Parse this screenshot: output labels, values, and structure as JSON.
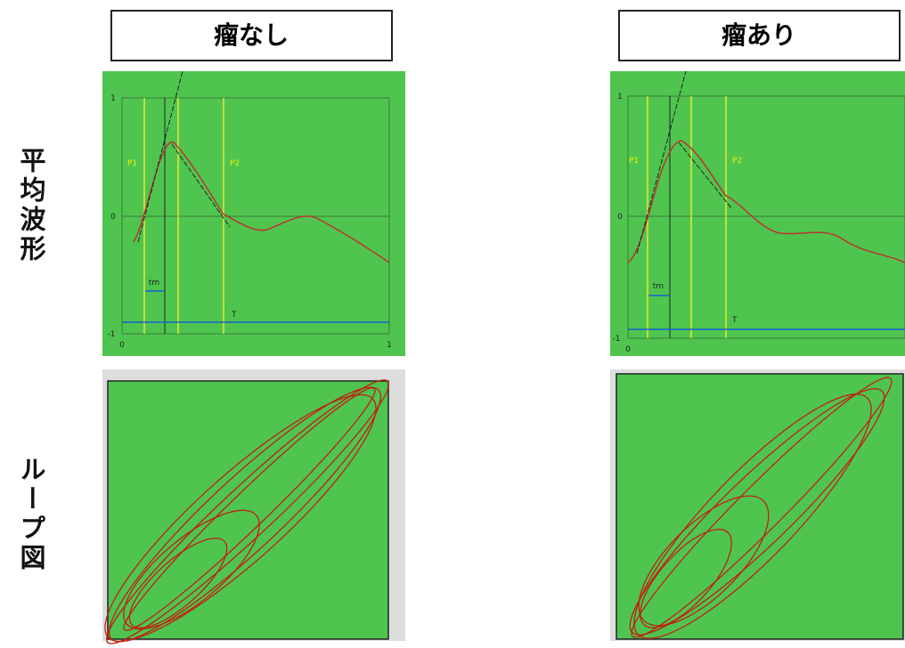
{
  "columns": [
    {
      "title": "瘤なし"
    },
    {
      "title": "瘤あり"
    }
  ],
  "rows": [
    {
      "label": "平均波形"
    },
    {
      "label": "ループ図"
    }
  ],
  "panels": [
    {
      "p1": "P1",
      "p2": "P2",
      "tm": "tm",
      "T": "T",
      "y_ticks": [
        "1",
        "0",
        "-1"
      ],
      "x_ticks": [
        "0",
        "1"
      ]
    },
    {
      "p1": "P1",
      "p2": "P2",
      "tm": "tm",
      "T": "T",
      "y_ticks": [
        "1",
        "0",
        "-1"
      ],
      "x_ticks": [
        "0"
      ]
    }
  ]
}
